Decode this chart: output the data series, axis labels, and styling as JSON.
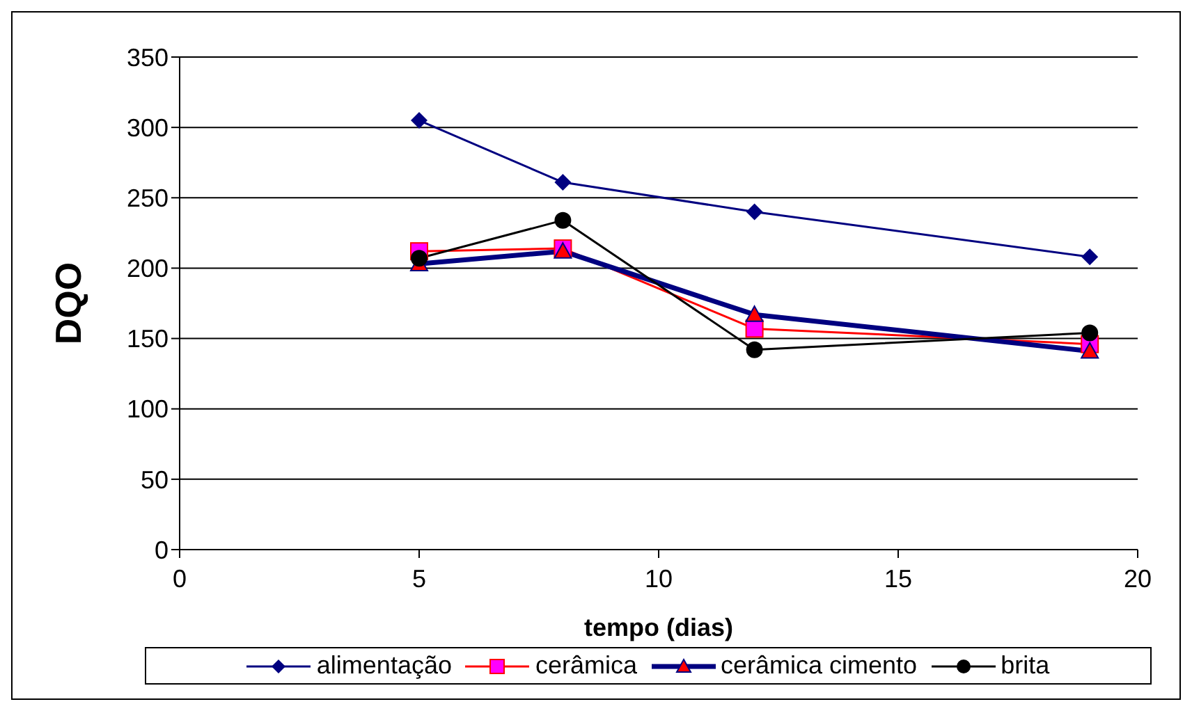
{
  "chart_data": {
    "type": "line",
    "xlabel": "tempo (dias)",
    "ylabel": "DQO",
    "x": [
      5,
      8,
      12,
      19
    ],
    "series": [
      {
        "name": "alimentação",
        "color": "#000080",
        "marker": "diamond",
        "values": [
          305,
          261,
          240,
          208
        ]
      },
      {
        "name": "cerâmica",
        "color": "#ff0000",
        "marker": "square",
        "values": [
          212,
          214,
          157,
          146
        ]
      },
      {
        "name": "cerâmica cimento",
        "color": "#000080",
        "marker": "triangle",
        "values": [
          203,
          212,
          167,
          141
        ]
      },
      {
        "name": "brita",
        "color": "#000000",
        "marker": "circle",
        "values": [
          207,
          234,
          142,
          154
        ]
      }
    ],
    "xlim": [
      0,
      20
    ],
    "xticks": [
      0,
      5,
      10,
      15,
      20
    ],
    "ylim": [
      0,
      350
    ],
    "yticks": [
      0,
      50,
      100,
      150,
      200,
      250,
      300,
      350
    ],
    "grid": "y",
    "legend": "bottom"
  }
}
